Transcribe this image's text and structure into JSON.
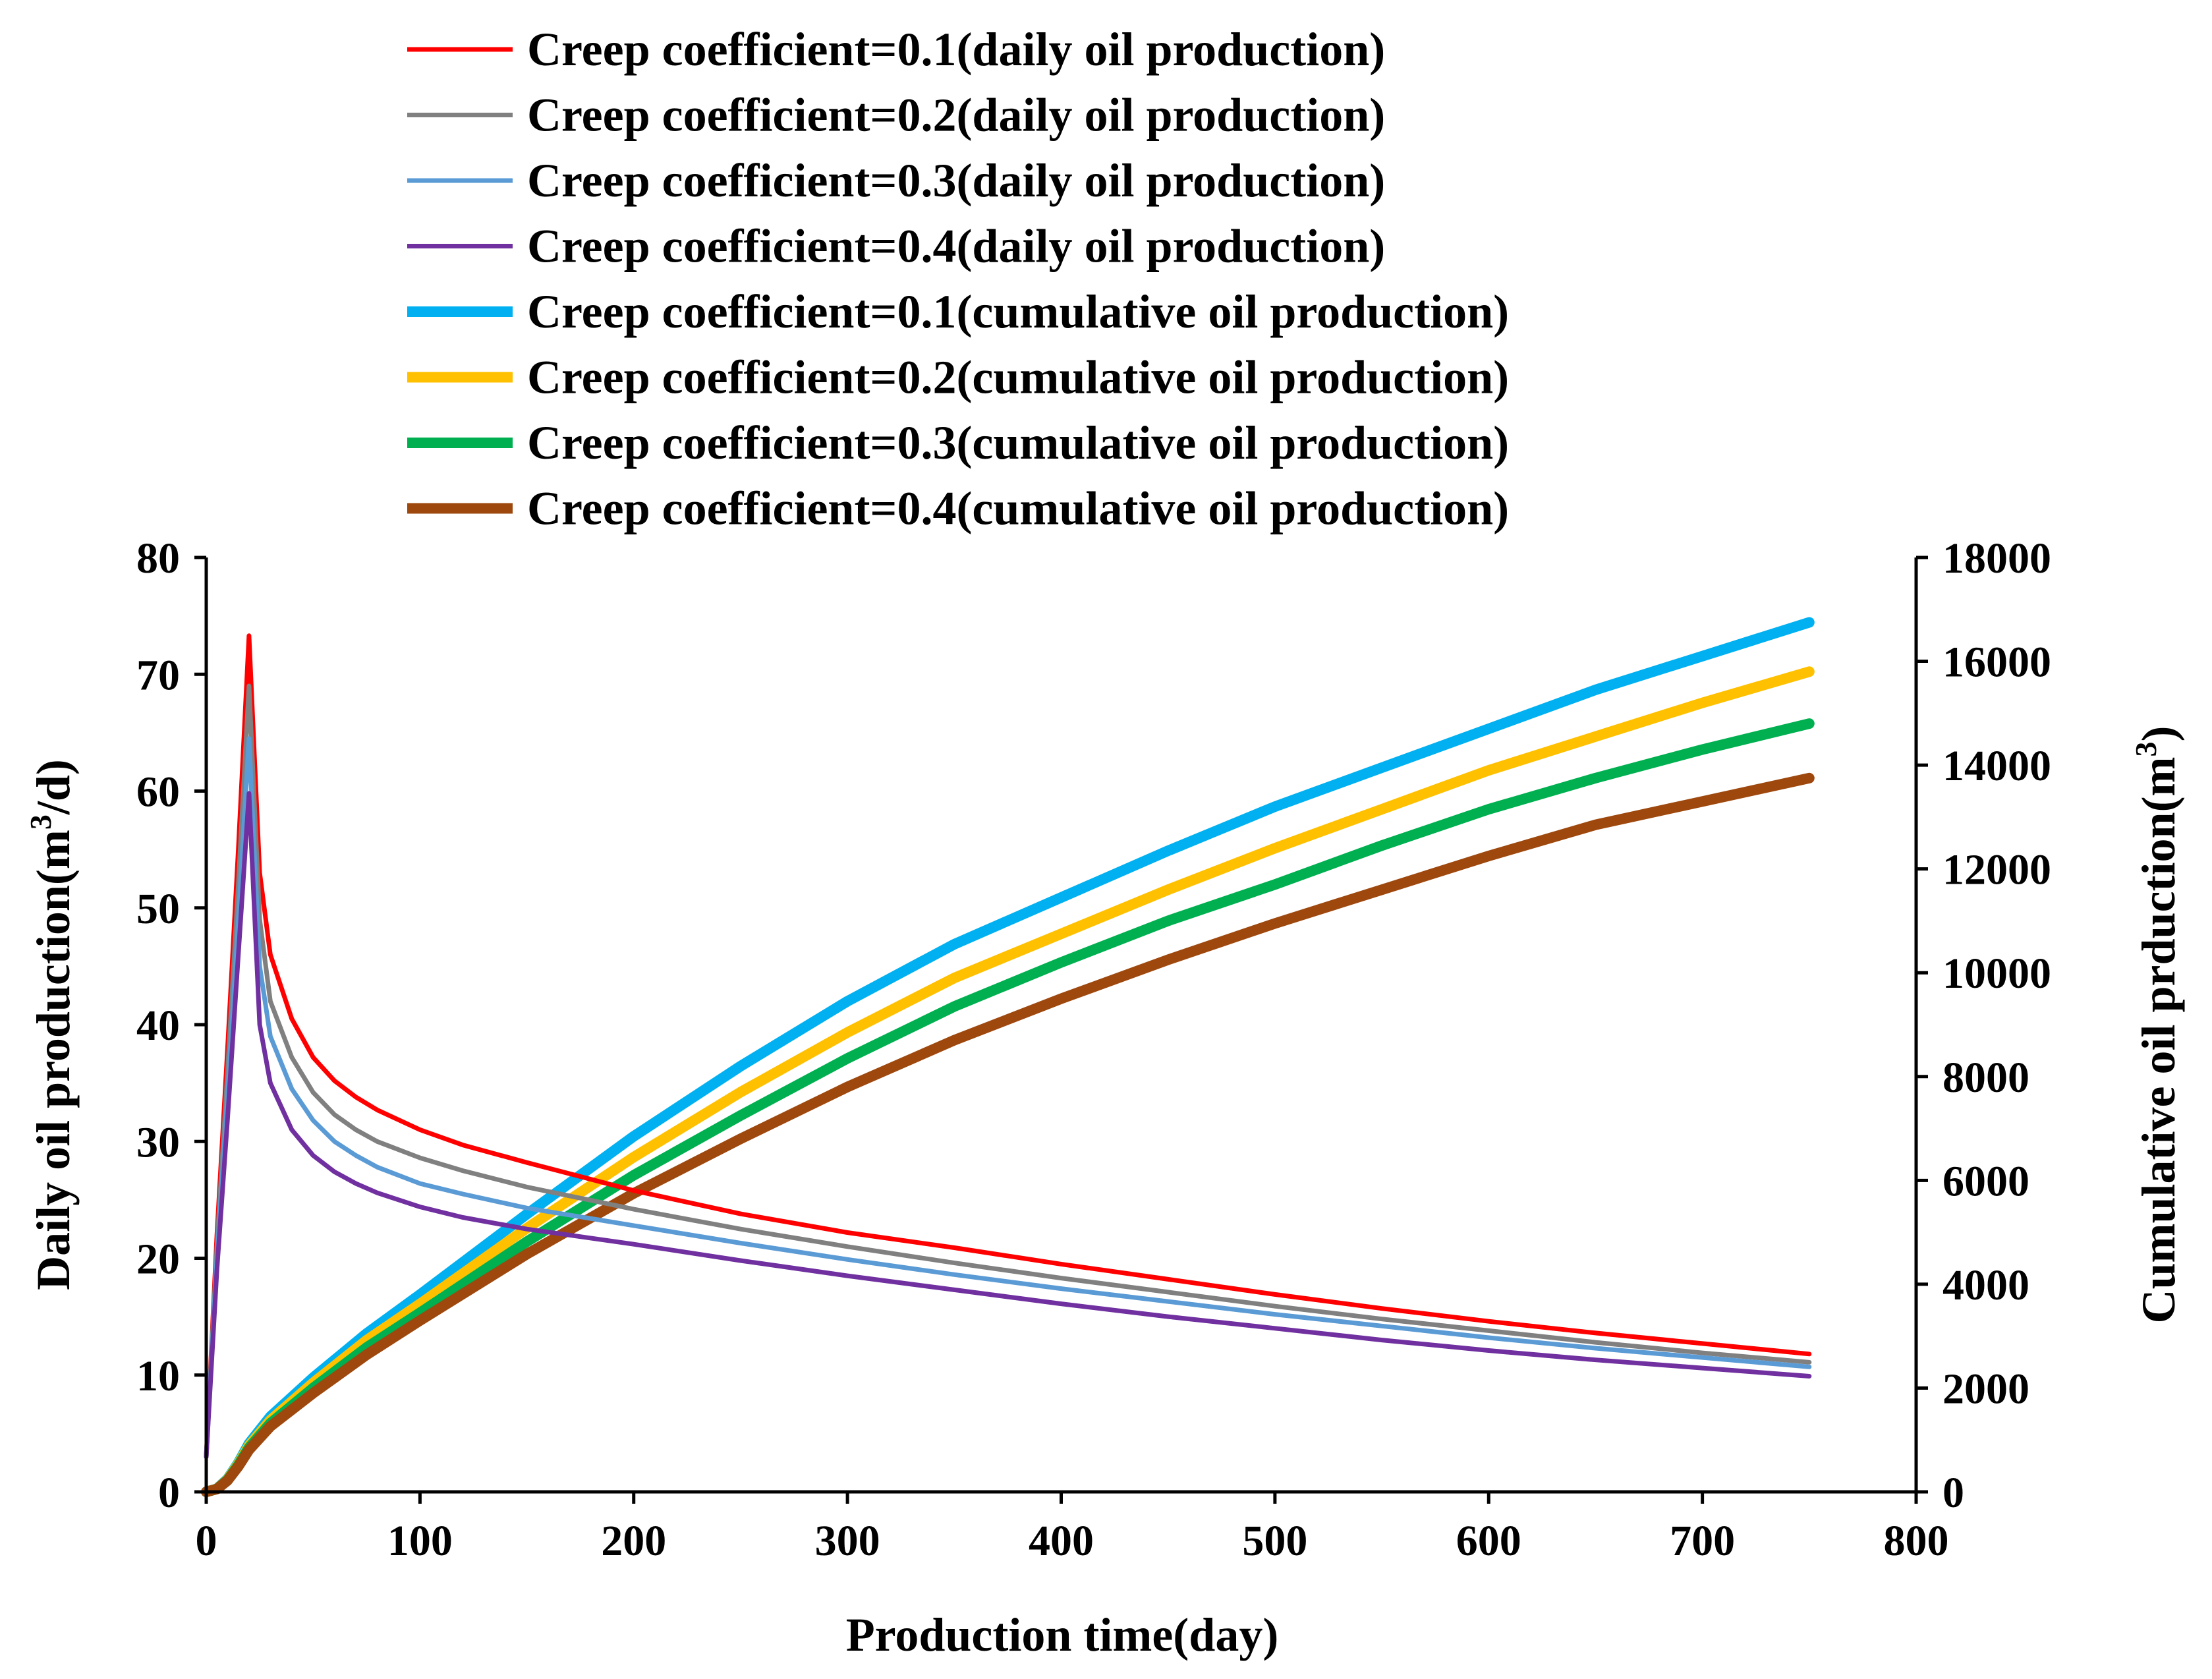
{
  "chart_data": {
    "type": "line",
    "xlabel": "Production time(day)",
    "ylabel_left": {
      "text": "Daily oil production(m",
      "sup": "3",
      "tail": "/d)"
    },
    "ylabel_right": {
      "text": "Cumulative oil prduction(m",
      "sup": "3",
      "tail": ")"
    },
    "xlim": [
      0,
      800
    ],
    "ylim_left": [
      0,
      80
    ],
    "ylim_right": [
      0,
      18000
    ],
    "xticks": [
      0,
      100,
      200,
      300,
      400,
      500,
      600,
      700,
      800
    ],
    "yticks_left": [
      0,
      10,
      20,
      30,
      40,
      50,
      60,
      70,
      80
    ],
    "yticks_right": [
      0,
      2000,
      4000,
      6000,
      8000,
      10000,
      12000,
      14000,
      16000,
      18000
    ],
    "grid": false,
    "legend_position": "top",
    "series": [
      {
        "name": "Creep coefficient=0.1(daily oil production)",
        "axis": "left",
        "color": "#ff0000",
        "weight": "thin",
        "x": [
          0,
          5,
          10,
          15,
          20,
          25,
          30,
          40,
          50,
          60,
          70,
          80,
          100,
          120,
          150,
          200,
          250,
          300,
          350,
          400,
          450,
          500,
          550,
          600,
          650,
          700,
          750
        ],
        "y": [
          3,
          22,
          38,
          55,
          73.3,
          53,
          46,
          40.5,
          37.2,
          35.2,
          33.8,
          32.7,
          31,
          29.7,
          28.2,
          25.8,
          23.8,
          22.2,
          20.9,
          19.5,
          18.2,
          16.9,
          15.7,
          14.6,
          13.6,
          12.7,
          11.8
        ]
      },
      {
        "name": "Creep coefficient=0.2(daily oil production)",
        "axis": "left",
        "color": "#808080",
        "weight": "thin",
        "x": [
          0,
          5,
          10,
          15,
          20,
          25,
          30,
          40,
          50,
          60,
          70,
          80,
          100,
          120,
          150,
          200,
          250,
          300,
          350,
          400,
          450,
          500,
          550,
          600,
          650,
          700,
          750
        ],
        "y": [
          3,
          21,
          36,
          52,
          69,
          49,
          42,
          37.2,
          34.2,
          32.3,
          31,
          30,
          28.6,
          27.5,
          26.1,
          24.2,
          22.5,
          21,
          19.6,
          18.3,
          17.1,
          15.9,
          14.8,
          13.8,
          12.8,
          11.9,
          11.1
        ]
      },
      {
        "name": "Creep coefficient=0.3(daily oil production)",
        "axis": "left",
        "color": "#5b9bd5",
        "weight": "thin",
        "x": [
          0,
          5,
          10,
          15,
          20,
          25,
          30,
          40,
          50,
          60,
          70,
          80,
          100,
          120,
          150,
          200,
          250,
          300,
          350,
          400,
          450,
          500,
          550,
          600,
          650,
          700,
          750
        ],
        "y": [
          3,
          20,
          34,
          49,
          64.5,
          45,
          39,
          34.5,
          31.8,
          30,
          28.8,
          27.8,
          26.4,
          25.5,
          24.3,
          22.8,
          21.3,
          19.9,
          18.6,
          17.4,
          16.3,
          15.2,
          14.2,
          13.2,
          12.3,
          11.5,
          10.7
        ]
      },
      {
        "name": "Creep coefficient=0.4(daily oil production)",
        "axis": "left",
        "color": "#7030a0",
        "weight": "thin",
        "x": [
          0,
          5,
          10,
          15,
          20,
          25,
          30,
          40,
          50,
          60,
          70,
          80,
          100,
          120,
          150,
          200,
          250,
          300,
          350,
          400,
          450,
          500,
          550,
          600,
          650,
          700,
          750
        ],
        "y": [
          3,
          19,
          32,
          46,
          59.8,
          40,
          35,
          31,
          28.8,
          27.4,
          26.4,
          25.6,
          24.4,
          23.5,
          22.5,
          21.2,
          19.8,
          18.5,
          17.3,
          16.1,
          15,
          14,
          13,
          12.1,
          11.3,
          10.6,
          9.9
        ]
      },
      {
        "name": "Creep coefficient=0.1(cumulative oil production)",
        "axis": "right",
        "color": "#00b0f0",
        "weight": "thick",
        "x": [
          0,
          5,
          10,
          15,
          20,
          30,
          50,
          75,
          100,
          150,
          200,
          250,
          300,
          350,
          400,
          450,
          500,
          550,
          600,
          650,
          700,
          750
        ],
        "y": [
          0,
          60,
          250,
          560,
          930,
          1450,
          2200,
          3050,
          3800,
          5350,
          6850,
          8200,
          9450,
          10550,
          11450,
          12350,
          13200,
          13950,
          14700,
          15450,
          16100,
          16750
        ]
      },
      {
        "name": "Creep coefficient=0.2(cumulative oil production)",
        "axis": "right",
        "color": "#ffc000",
        "weight": "thick",
        "x": [
          0,
          5,
          10,
          15,
          20,
          30,
          50,
          75,
          100,
          150,
          200,
          250,
          300,
          350,
          400,
          450,
          500,
          550,
          600,
          650,
          700,
          750
        ],
        "y": [
          0,
          58,
          240,
          540,
          890,
          1380,
          2100,
          2920,
          3620,
          5080,
          6450,
          7700,
          8850,
          9900,
          10750,
          11600,
          12400,
          13150,
          13900,
          14550,
          15200,
          15800
        ]
      },
      {
        "name": "Creep coefficient=0.3(cumulative oil production)",
        "axis": "right",
        "color": "#00b050",
        "weight": "thick",
        "x": [
          0,
          5,
          10,
          15,
          20,
          30,
          50,
          75,
          100,
          150,
          200,
          250,
          300,
          350,
          400,
          450,
          500,
          550,
          600,
          650,
          700,
          750
        ],
        "y": [
          0,
          56,
          230,
          515,
          850,
          1320,
          2000,
          2780,
          3450,
          4820,
          6100,
          7250,
          8350,
          9350,
          10200,
          11000,
          11700,
          12450,
          13150,
          13750,
          14300,
          14800
        ]
      },
      {
        "name": "Creep coefficient=0.4(cumulative oil production)",
        "axis": "right",
        "color": "#9e480e",
        "weight": "thick",
        "x": [
          0,
          5,
          10,
          15,
          20,
          30,
          50,
          75,
          100,
          150,
          200,
          250,
          300,
          350,
          400,
          450,
          500,
          550,
          600,
          650,
          700,
          750
        ],
        "y": [
          0,
          54,
          220,
          490,
          810,
          1260,
          1900,
          2640,
          3300,
          4580,
          5750,
          6800,
          7800,
          8700,
          9500,
          10250,
          10950,
          11600,
          12250,
          12850,
          13300,
          13750
        ]
      }
    ]
  }
}
